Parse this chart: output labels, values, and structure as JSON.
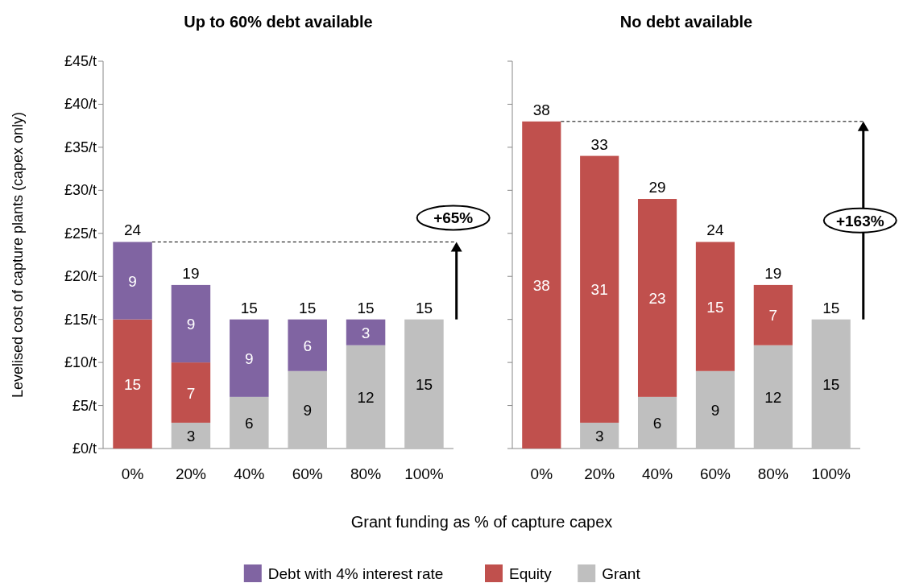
{
  "chart_data": [
    {
      "type": "bar",
      "stacked": true,
      "title": "Up to 60% debt available",
      "xlabel": "Grant funding as % of capture capex",
      "ylabel": "Levelised cost of capture plants (capex only)",
      "categories": [
        "0%",
        "20%",
        "40%",
        "60%",
        "80%",
        "100%"
      ],
      "series": [
        {
          "name": "Grant",
          "color": "#bfbfbf",
          "values": [
            null,
            3,
            6,
            9,
            12,
            15
          ]
        },
        {
          "name": "Equity",
          "color": "#c0504d",
          "values": [
            15,
            7,
            null,
            null,
            null,
            null
          ]
        },
        {
          "name": "Debt with 4% interest rate",
          "color": "#8064a2",
          "values": [
            9,
            9,
            9,
            6,
            3,
            null
          ]
        }
      ],
      "ylim": [
        0,
        45
      ],
      "yticks": [
        {
          "value": 0,
          "label": "£0/t"
        },
        {
          "value": 5,
          "label": "£5/t"
        },
        {
          "value": 10,
          "label": "£10/t"
        },
        {
          "value": 15,
          "label": "£15/t"
        },
        {
          "value": 20,
          "label": "£20/t"
        },
        {
          "value": 25,
          "label": "£25/t"
        },
        {
          "value": 30,
          "label": "£30/t"
        },
        {
          "value": 35,
          "label": "£35/t"
        },
        {
          "value": 40,
          "label": "£40/t"
        },
        {
          "value": 45,
          "label": "£45/t"
        }
      ],
      "data_labels": true,
      "totals": [
        "24",
        "19",
        "15",
        "15",
        "15",
        "15"
      ],
      "ref_lines": [
        {
          "axis": "y",
          "value": 24,
          "line_style": "dashed",
          "color": "#000000"
        }
      ],
      "annotations": [
        "+65%"
      ],
      "legend": "bottom"
    },
    {
      "type": "bar",
      "stacked": true,
      "title": "No debt available",
      "categories": [
        "0%",
        "20%",
        "40%",
        "60%",
        "80%",
        "100%"
      ],
      "series": [
        {
          "color": "#bfbfbf",
          "values": [
            null,
            3,
            6,
            9,
            12,
            15
          ]
        },
        {
          "color": "#c0504d",
          "values": [
            38,
            31,
            23,
            15,
            7,
            null
          ]
        }
      ],
      "ylim": [
        0,
        45
      ],
      "yticks": [
        0,
        5,
        10,
        15,
        20,
        25,
        30,
        35,
        40,
        45
      ],
      "tick_labels": "x",
      "data_labels": true,
      "totals": [
        "38",
        "33",
        "29",
        "24",
        "19",
        "15"
      ],
      "ref_lines": [
        {
          "axis": "y",
          "value": 38,
          "line_style": "dashed",
          "color": "#000000"
        }
      ],
      "annotations": [
        "+163%"
      ]
    }
  ]
}
